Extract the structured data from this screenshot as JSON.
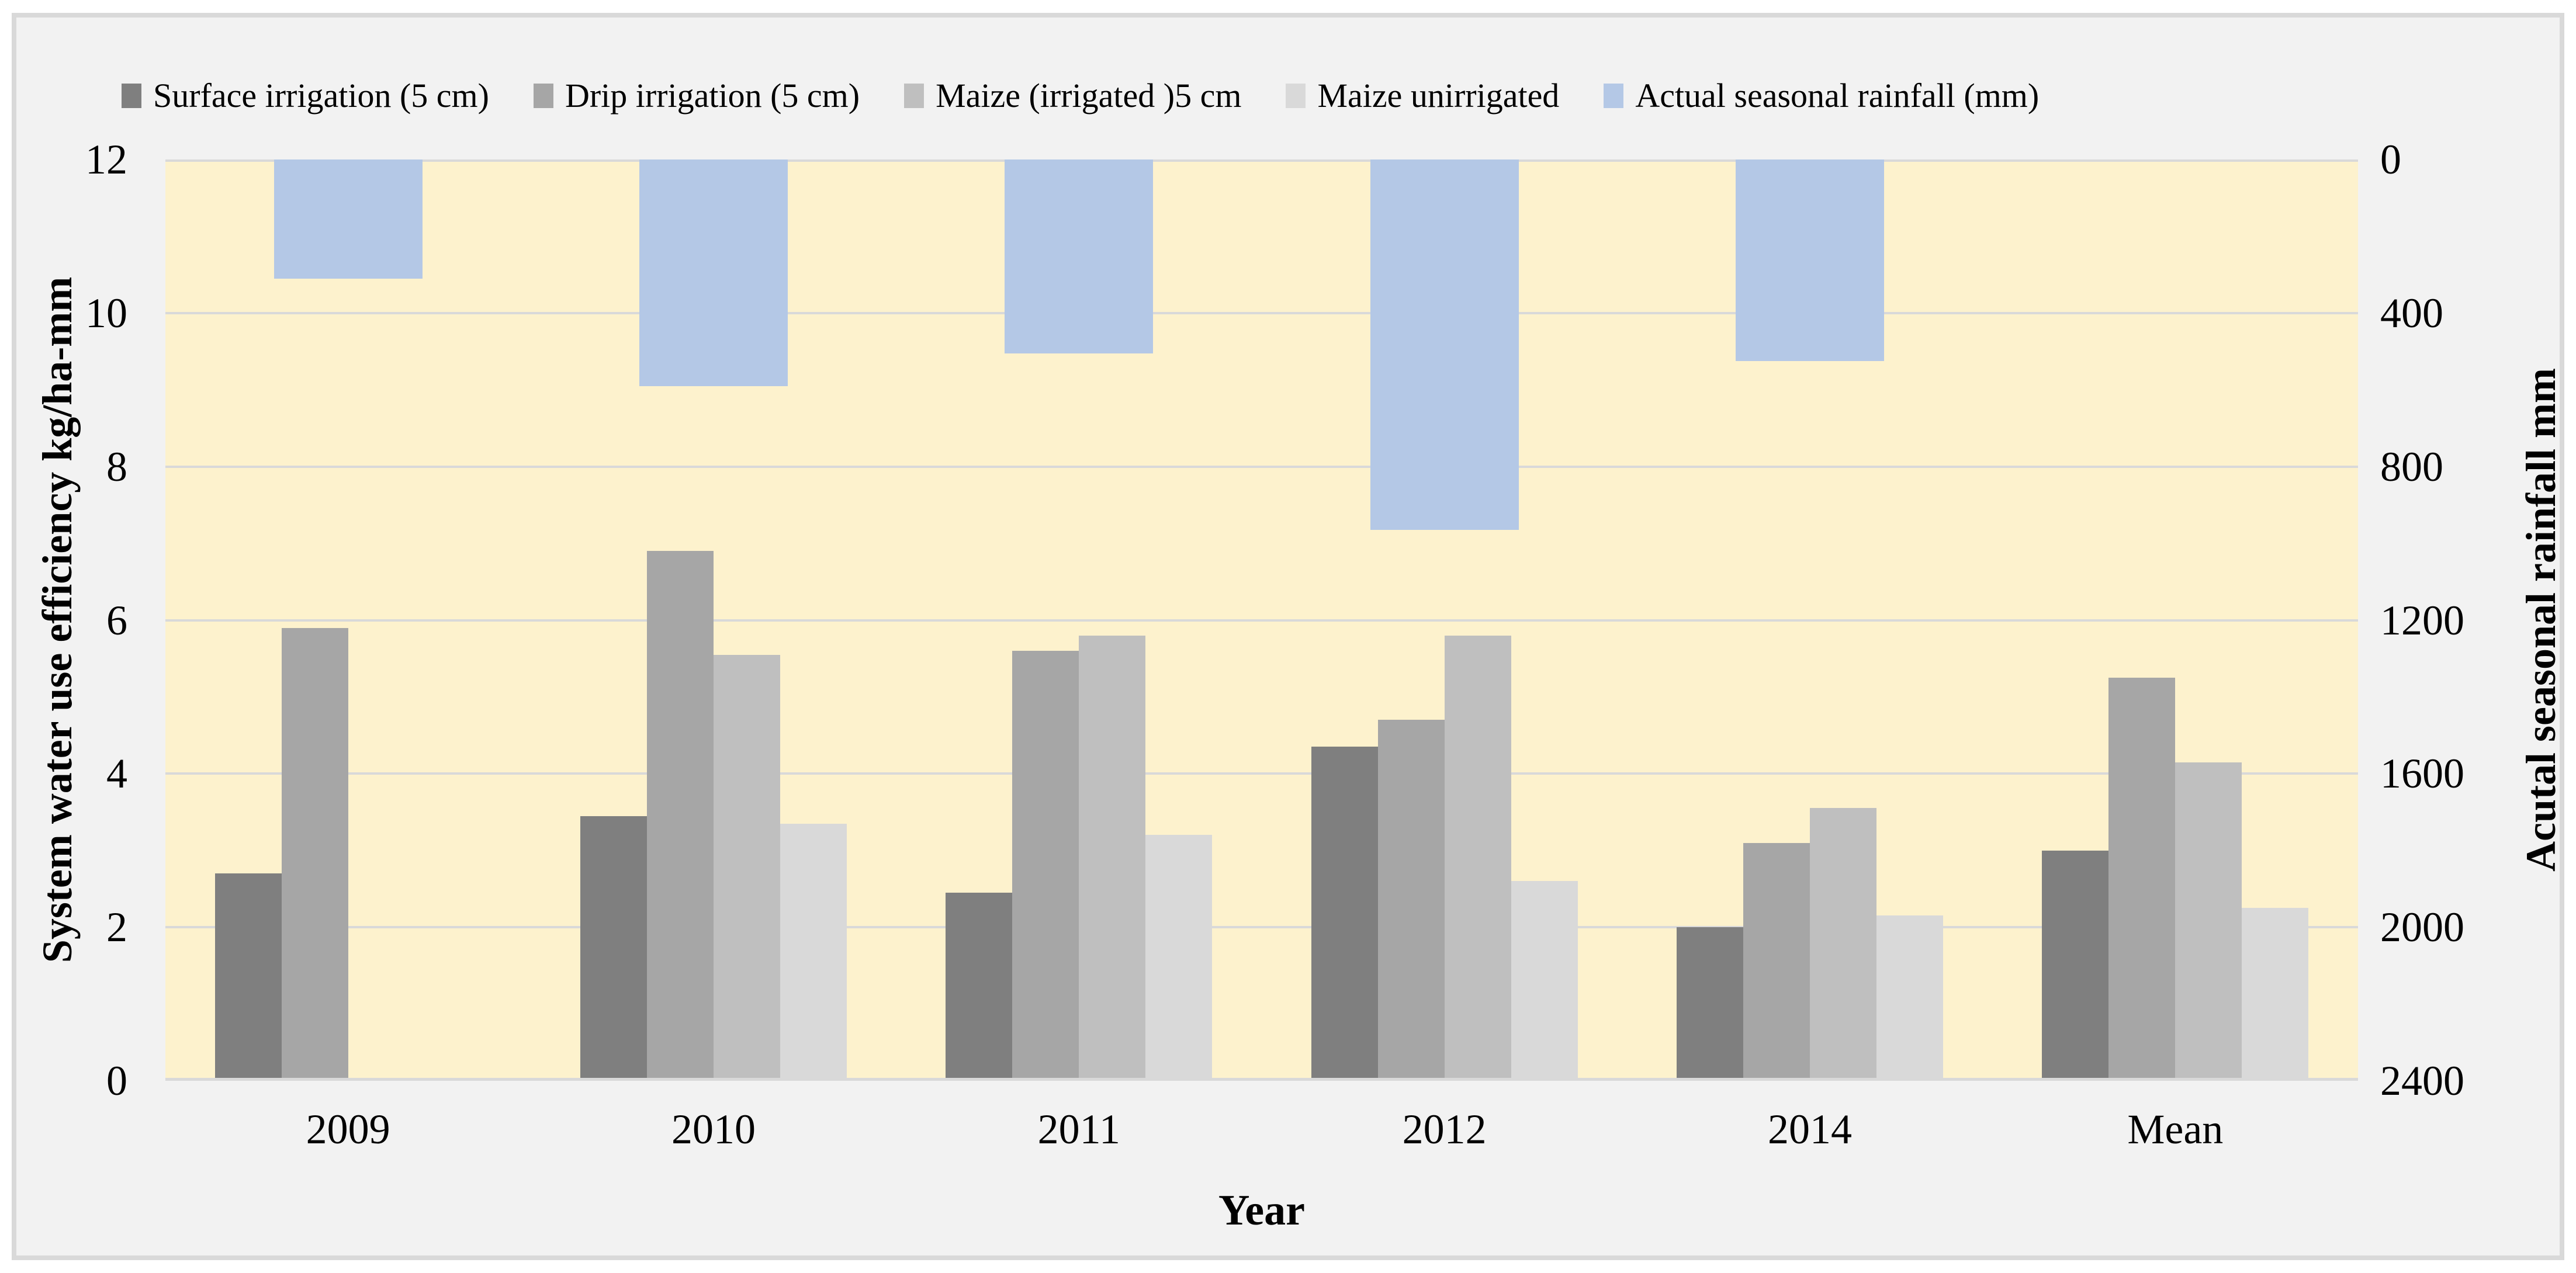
{
  "figure": {
    "background": "#f2f2f2",
    "border_color": "#d9d9d9",
    "plot_background": "#fdf2cd",
    "gridline_color": "#d9d9d9",
    "text_color": "#000000"
  },
  "legend": {
    "position": "top",
    "items": [
      {
        "label": "Surface irrigation (5 cm)",
        "color": "#7f7f7f"
      },
      {
        "label": "Drip irrigation (5 cm)",
        "color": "#a6a6a6"
      },
      {
        "label": "Maize (irrigated )5 cm",
        "color": "#bfbfbf"
      },
      {
        "label": "Maize unirrigated",
        "color": "#d9d9d9"
      },
      {
        "label": "Actual seasonal rainfall (mm)",
        "color": "#b4c8e6"
      }
    ]
  },
  "chart_data": {
    "type": "bar",
    "categories": [
      "2009",
      "2010",
      "2011",
      "2012",
      "2014",
      "Mean"
    ],
    "series": [
      {
        "name": "Surface irrigation (5 cm)",
        "axis": "left",
        "color": "#7f7f7f",
        "values": [
          2.7,
          3.45,
          2.45,
          4.35,
          2.0,
          3.0
        ]
      },
      {
        "name": "Drip irrigation (5 cm)",
        "axis": "left",
        "color": "#a6a6a6",
        "values": [
          5.9,
          6.9,
          5.6,
          4.7,
          3.1,
          5.25
        ]
      },
      {
        "name": "Maize (irrigated )5 cm",
        "axis": "left",
        "color": "#bfbfbf",
        "values": [
          null,
          5.55,
          5.8,
          5.8,
          3.55,
          4.15
        ]
      },
      {
        "name": "Maize unirrigated",
        "axis": "left",
        "color": "#d9d9d9",
        "values": [
          null,
          3.35,
          3.2,
          2.6,
          2.15,
          2.25
        ]
      },
      {
        "name": "Actual seasonal rainfall (mm)",
        "axis": "right",
        "color": "#b4c8e6",
        "values": [
          310,
          590,
          505,
          965,
          525,
          null
        ]
      }
    ],
    "left_axis": {
      "label": "System water use efficiency kg/ha-mm",
      "min": 0,
      "max": 12,
      "step": 2
    },
    "right_axis": {
      "label": "Acutal seasonal rainfall mm",
      "min": 0,
      "max": 2400,
      "step": 400,
      "inverted": true
    },
    "xlabel": "Year",
    "grid": true,
    "legend_position": "top"
  }
}
